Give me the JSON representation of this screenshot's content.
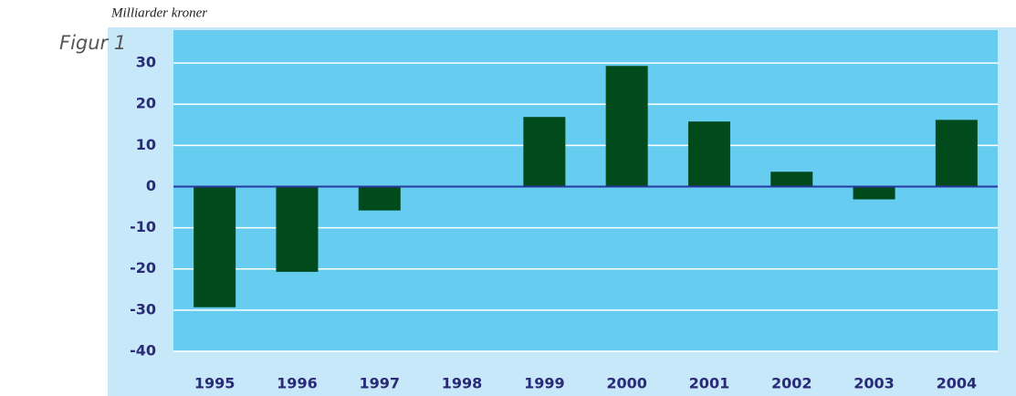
{
  "chart_data": {
    "type": "bar",
    "title": "Figur 1",
    "y_label": "Milliarder kroner",
    "categories": [
      "1995",
      "1996",
      "1997",
      "1998",
      "1999",
      "2000",
      "2001",
      "2002",
      "2003",
      "2004"
    ],
    "values": [
      -29.3,
      -20.7,
      -5.8,
      0,
      16.9,
      29.3,
      15.8,
      3.6,
      -3.1,
      16.2
    ],
    "color": "#004a1c",
    "ylim": [
      -40,
      38
    ],
    "yticks": [
      -40,
      -30,
      -20,
      -10,
      0,
      10,
      20,
      30
    ],
    "grid": true,
    "zero_line_color": "#2838a0"
  }
}
